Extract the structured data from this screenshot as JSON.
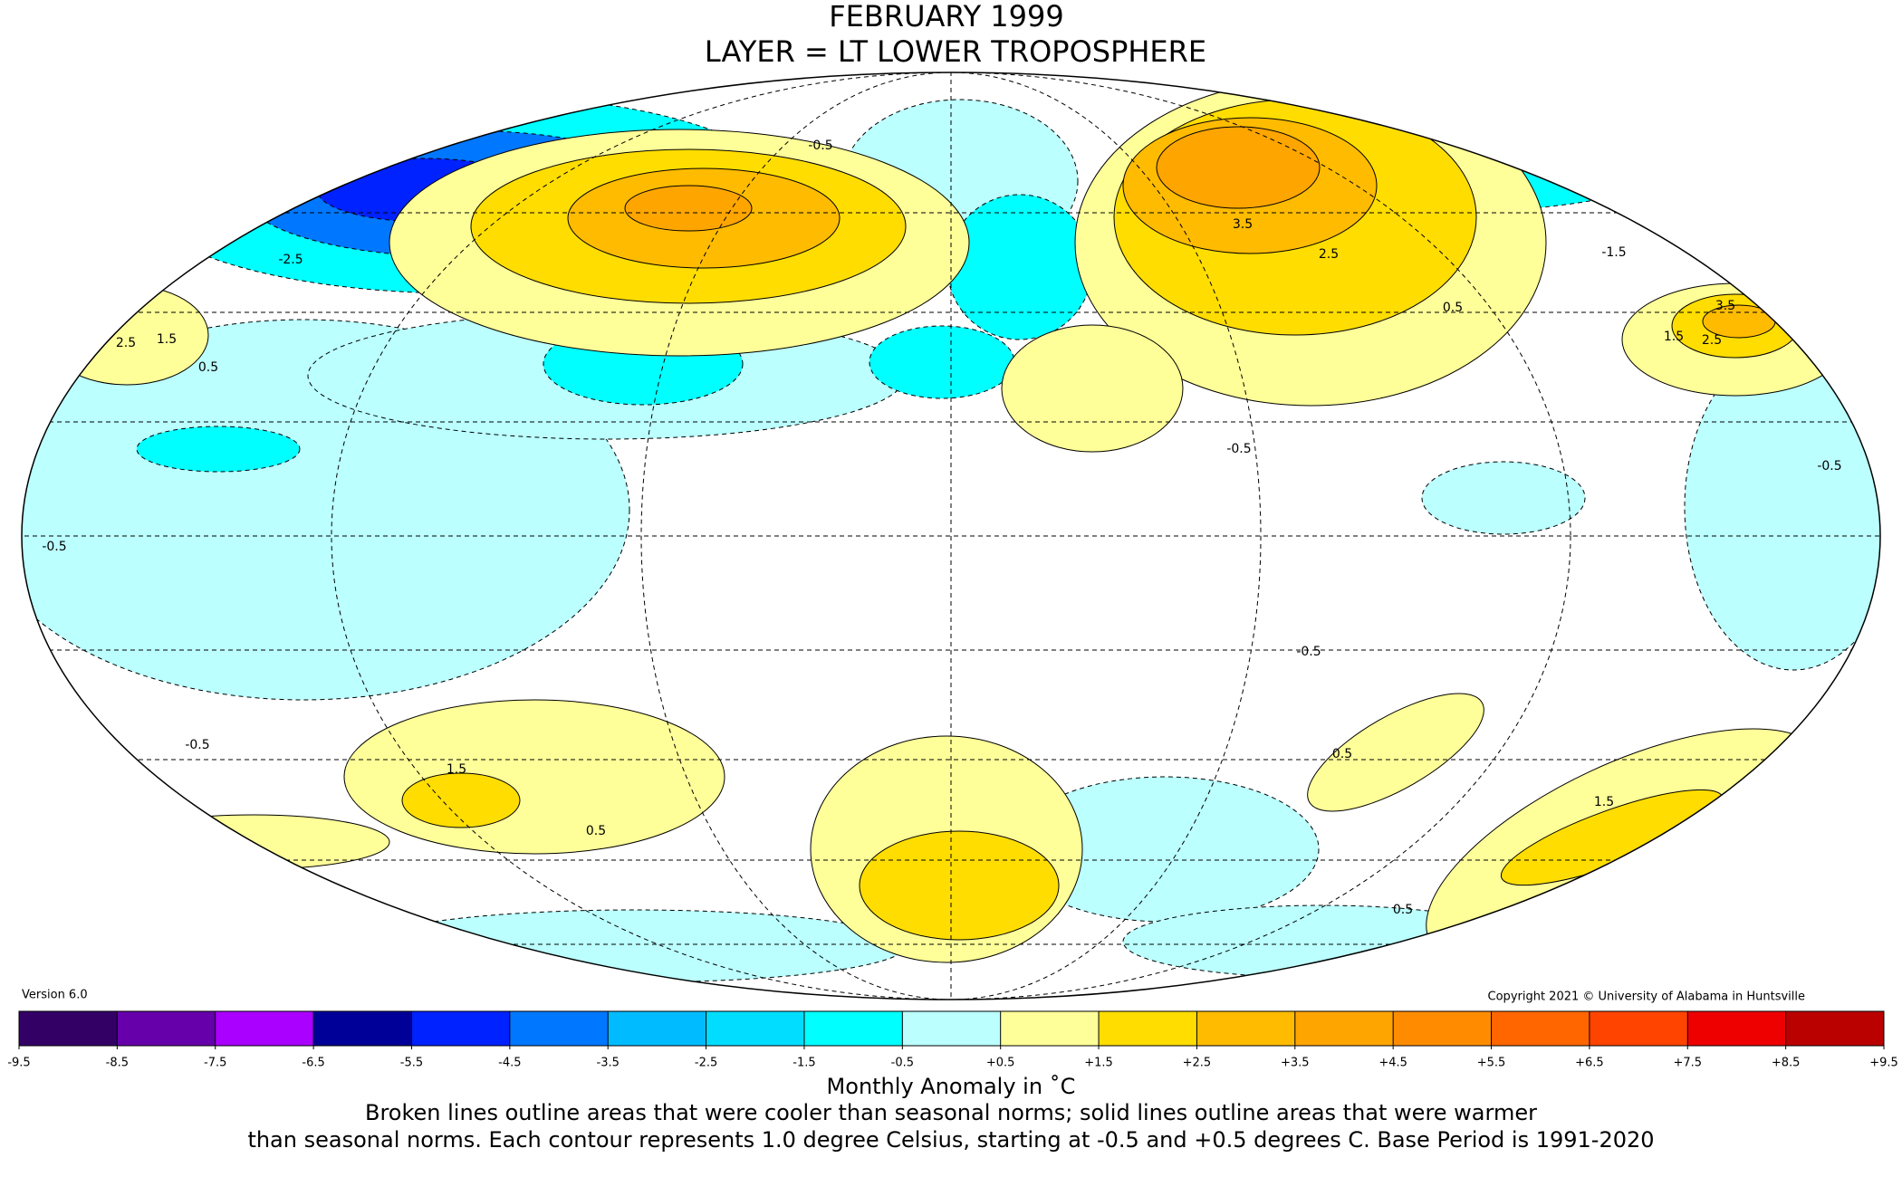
{
  "header": {
    "title": "FEBRUARY 1999",
    "subtitle": "LAYER = LT LOWER TROPOSPHERE"
  },
  "version": "Version 6.0",
  "copyright": "Copyright 2021 © University of Alabama in Huntsville",
  "map": {
    "contour_labels": [
      "-0.5",
      "2.5",
      "1.5",
      "0.5",
      "-2.5",
      "3.5",
      "2.5",
      "-1.5",
      "0.5",
      "1.5",
      "0.5",
      "0.5",
      "1.5",
      "0.5",
      "-0.5",
      "-0.5",
      "-0.5",
      "-0.5",
      "3.5",
      "2.5",
      "1.5",
      "-0.5"
    ]
  },
  "colorbar": {
    "ticks": [
      -9.5,
      -8.5,
      -7.5,
      -6.5,
      -5.5,
      -4.5,
      -3.5,
      -2.5,
      -1.5,
      -0.5,
      {
        "value": 0.5,
        "label": "+0.5"
      },
      {
        "value": 1.5,
        "label": "+1.5"
      },
      {
        "value": 2.5,
        "label": "+2.5"
      },
      {
        "value": 3.5,
        "label": "+3.5"
      },
      {
        "value": 4.5,
        "label": "+4.5"
      },
      {
        "value": 5.5,
        "label": "+5.5"
      },
      {
        "value": 6.5,
        "label": "+6.5"
      },
      {
        "value": 7.5,
        "label": "+7.5"
      },
      {
        "value": 8.5,
        "label": "+8.5"
      },
      {
        "value": 9.5,
        "label": "+9.5"
      }
    ],
    "colors": [
      "#330066",
      "#6600aa",
      "#aa00ff",
      "#000099",
      "#0022ff",
      "#0077ff",
      "#00bbff",
      "#00ddff",
      "#00ffff",
      "#bbffff",
      "#ffffff",
      "#ffff99",
      "#ffdd00",
      "#ffbb00",
      "#ffa500",
      "#ff8c00",
      "#ff6600",
      "#ff4400",
      "#ee0000",
      "#bb0000"
    ],
    "label": "Monthly Anomaly in ˚C"
  },
  "caption": [
    "Broken lines outline areas that were cooler than seasonal norms; solid lines outline areas that were warmer",
    "than seasonal norms. Each contour represents 1.0 degree Celsius, starting at -0.5 and +0.5 degrees C. Base Period is 1991-2020"
  ]
}
